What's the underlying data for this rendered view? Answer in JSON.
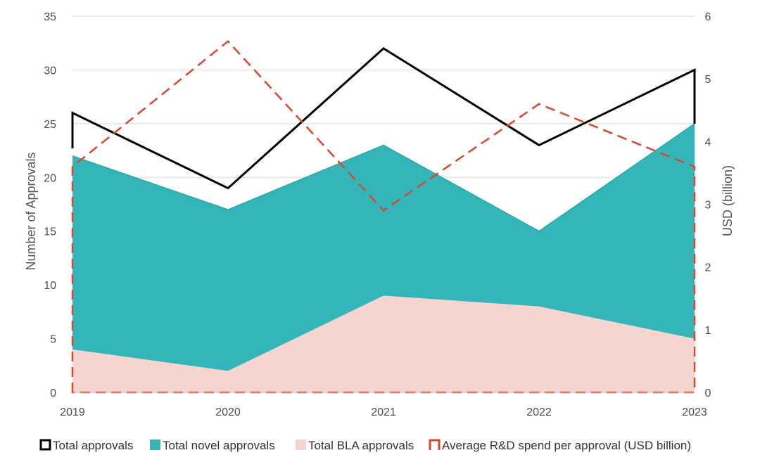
{
  "chart_data": {
    "type": "area",
    "categories": [
      "2019",
      "2020",
      "2021",
      "2022",
      "2023"
    ],
    "y_axis_left": {
      "label": "Number of Approvals",
      "range": [
        0,
        35
      ],
      "ticks": [
        "0",
        "5",
        "10",
        "15",
        "20",
        "25",
        "30",
        "35"
      ]
    },
    "y_axis_right": {
      "label": "USD (billion)",
      "range": [
        0,
        6
      ],
      "ticks": [
        "0",
        "1",
        "2",
        "3",
        "4",
        "5",
        "6"
      ]
    },
    "grid": "horizontal",
    "legend_position": "bottom",
    "series": [
      {
        "name": "Total approvals",
        "kind": "line",
        "axis": "left",
        "color": "#000000",
        "values": [
          26,
          19,
          32,
          23,
          30
        ]
      },
      {
        "name": "Total novel approvals",
        "kind": "area",
        "axis": "left",
        "color": "#33b5ba",
        "values": [
          22,
          17,
          23,
          15,
          25
        ]
      },
      {
        "name": "Total BLA approvals",
        "kind": "area",
        "axis": "left",
        "color": "#f5d5d0",
        "values": [
          4,
          2,
          9,
          8,
          5
        ]
      },
      {
        "name": "Average R&D spend per approval (USD billion)",
        "kind": "dashed-line",
        "axis": "right",
        "color": "#d9482b",
        "values": [
          3.6,
          5.6,
          2.9,
          4.6,
          3.6
        ]
      }
    ]
  }
}
